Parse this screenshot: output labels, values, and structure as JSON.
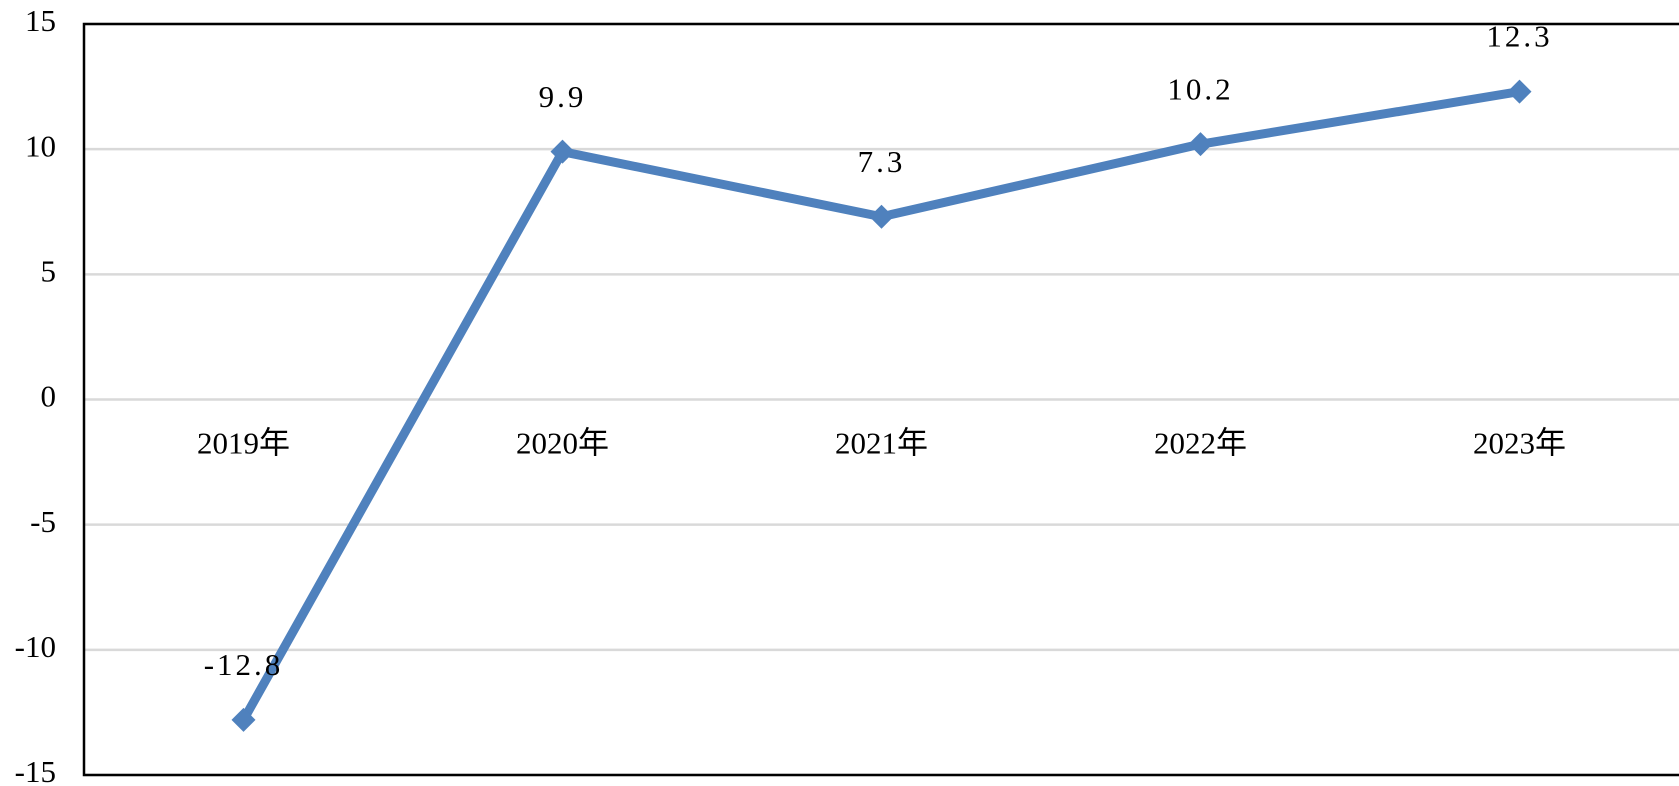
{
  "chart_data": {
    "type": "line",
    "categories": [
      "2019年",
      "2020年",
      "2021年",
      "2022年",
      "2023年"
    ],
    "values": [
      -12.8,
      9.9,
      7.3,
      10.2,
      12.3
    ],
    "color": "#4f81bd",
    "ylim": [
      -15,
      15
    ],
    "yticks": [
      -15,
      -10,
      -5,
      0,
      5,
      10,
      15
    ],
    "grid": true
  }
}
